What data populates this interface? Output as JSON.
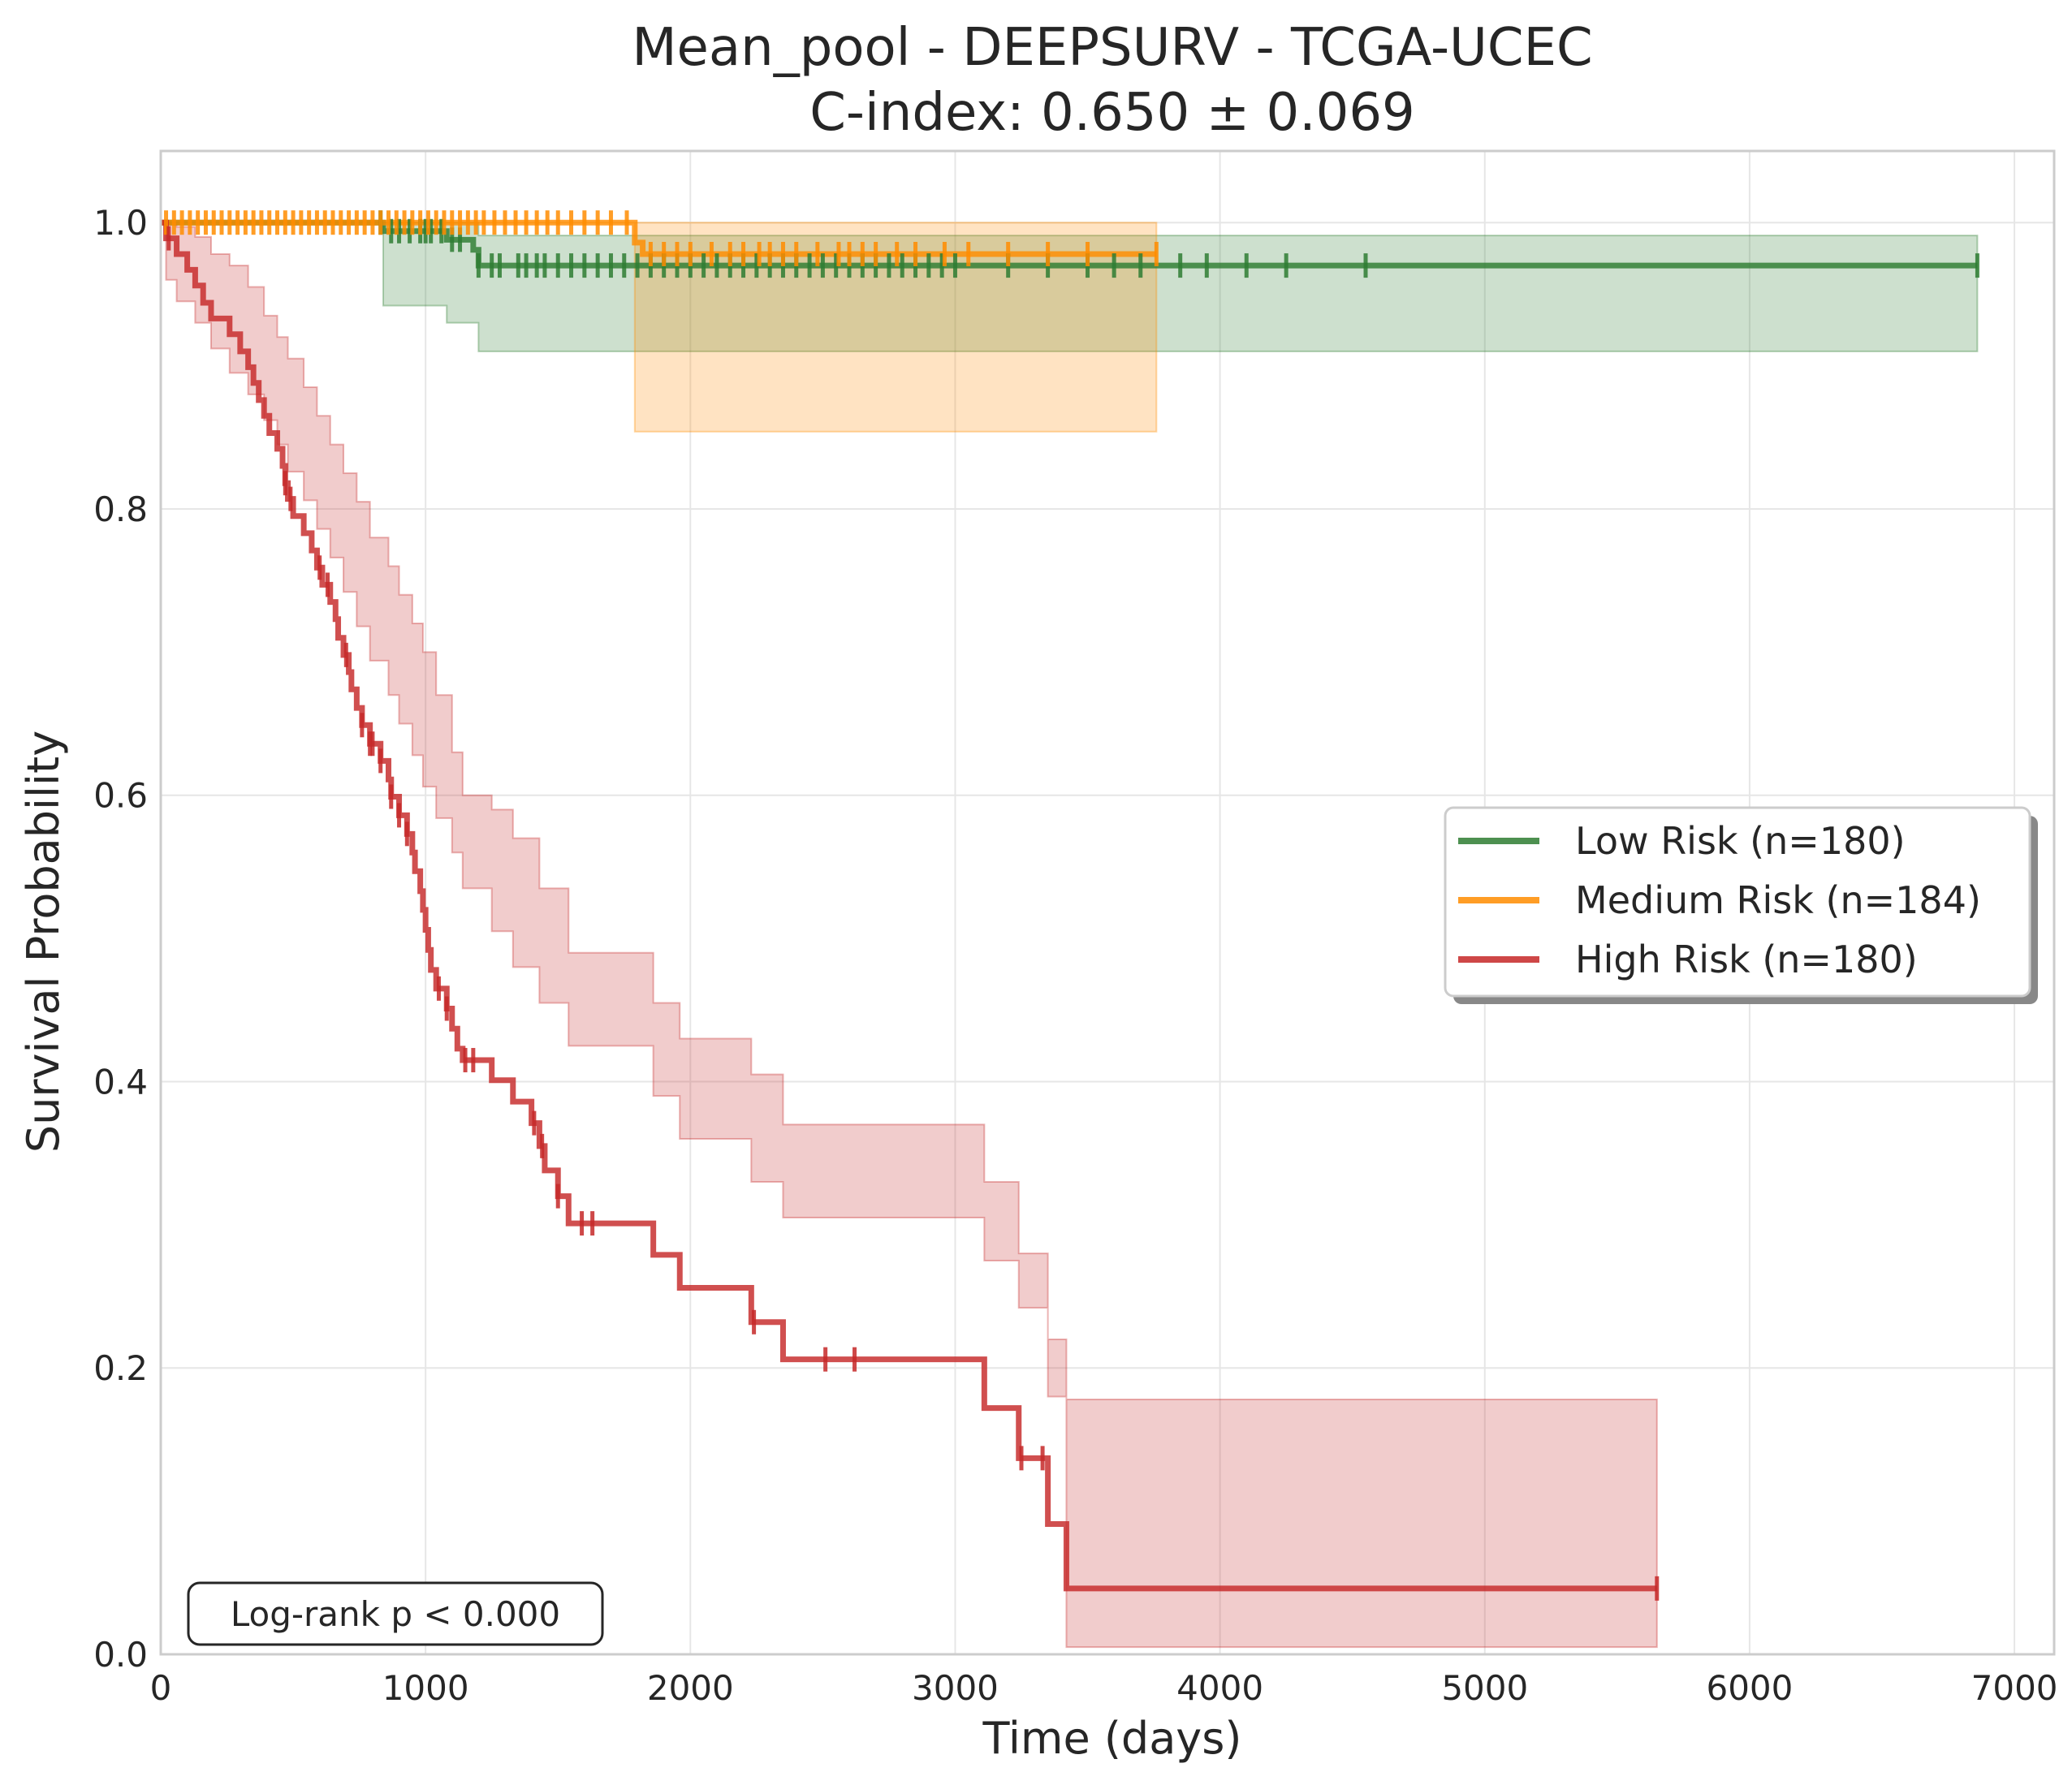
{
  "chart_data": {
    "type": "line",
    "title": "Mean_pool - DEEPSURV - TCGA-UCEC",
    "subtitle": "C-index: 0.650 ± 0.069",
    "xlabel": "Time (days)",
    "ylabel": "Survival Probability",
    "xlim": [
      0,
      7150
    ],
    "ylim": [
      0,
      1.05
    ],
    "x_ticks": [
      0,
      1000,
      2000,
      3000,
      4000,
      5000,
      6000,
      7000
    ],
    "x_tick_labels": [
      "0",
      "1000",
      "2000",
      "3000",
      "4000",
      "5000",
      "6000",
      "7000"
    ],
    "y_ticks": [
      0.0,
      0.2,
      0.4,
      0.6,
      0.8,
      1.0
    ],
    "y_tick_labels": [
      "0.0",
      "0.2",
      "0.4",
      "0.6",
      "0.8",
      "1.0"
    ],
    "grid": true,
    "legend_position": "center-right",
    "annotation": "Log-rank p < 0.000",
    "series": [
      {
        "name": "Low Risk (n=180)",
        "color": "#2e7d32",
        "steps": [
          [
            0,
            1.0
          ],
          [
            840,
            0.994
          ],
          [
            1080,
            0.988
          ],
          [
            1180,
            0.981
          ],
          [
            1200,
            0.97
          ],
          [
            6860,
            0.97
          ]
        ],
        "ci_upper": [
          [
            0,
            1.0
          ],
          [
            840,
            1.0
          ],
          [
            1200,
            0.991
          ],
          [
            6860,
            0.991
          ]
        ],
        "ci_lower": [
          [
            0,
            1.0
          ],
          [
            840,
            0.942
          ],
          [
            1080,
            0.93
          ],
          [
            1200,
            0.91
          ],
          [
            6860,
            0.91
          ]
        ],
        "censor_times": [
          830,
          870,
          900,
          940,
          980,
          1000,
          1020,
          1060,
          1100,
          1130,
          1200,
          1250,
          1280,
          1350,
          1380,
          1420,
          1450,
          1500,
          1550,
          1600,
          1650,
          1700,
          1750,
          1800,
          1850,
          1900,
          1950,
          2000,
          2050,
          2100,
          2150,
          2200,
          2250,
          2300,
          2350,
          2400,
          2450,
          2500,
          2550,
          2600,
          2650,
          2700,
          2750,
          2800,
          2850,
          2900,
          2950,
          3000,
          3200,
          3350,
          3500,
          3600,
          3700,
          3850,
          3950,
          4100,
          4250,
          4550,
          6860
        ]
      },
      {
        "name": "Medium Risk (n=184)",
        "color": "#ff8c00",
        "steps": [
          [
            0,
            1.0
          ],
          [
            1790,
            0.986
          ],
          [
            1820,
            0.978
          ],
          [
            3760,
            0.978
          ]
        ],
        "ci_upper": [
          [
            0,
            1.0
          ],
          [
            1790,
            1.0
          ],
          [
            3760,
            1.0
          ]
        ],
        "ci_lower": [
          [
            0,
            1.0
          ],
          [
            1790,
            0.854
          ],
          [
            3760,
            0.854
          ]
        ],
        "censor_times": [
          20,
          50,
          80,
          110,
          140,
          170,
          200,
          230,
          260,
          290,
          320,
          350,
          380,
          410,
          440,
          470,
          500,
          530,
          560,
          590,
          620,
          650,
          680,
          710,
          740,
          770,
          800,
          830,
          860,
          890,
          920,
          950,
          980,
          1010,
          1040,
          1070,
          1100,
          1130,
          1160,
          1190,
          1220,
          1260,
          1300,
          1340,
          1380,
          1420,
          1460,
          1500,
          1550,
          1600,
          1650,
          1700,
          1760,
          1850,
          1900,
          1950,
          2000,
          2080,
          2150,
          2200,
          2260,
          2300,
          2350,
          2400,
          2480,
          2560,
          2600,
          2650,
          2700,
          2780,
          2850,
          2960,
          3050,
          3200,
          3350,
          3500,
          3760
        ]
      },
      {
        "name": "High Risk (n=180)",
        "color": "#c62828",
        "steps": [
          [
            0,
            1.0
          ],
          [
            20,
            0.989
          ],
          [
            60,
            0.978
          ],
          [
            100,
            0.967
          ],
          [
            130,
            0.956
          ],
          [
            160,
            0.944
          ],
          [
            190,
            0.933
          ],
          [
            260,
            0.922
          ],
          [
            300,
            0.91
          ],
          [
            330,
            0.899
          ],
          [
            350,
            0.888
          ],
          [
            370,
            0.876
          ],
          [
            390,
            0.865
          ],
          [
            410,
            0.853
          ],
          [
            440,
            0.842
          ],
          [
            460,
            0.83
          ],
          [
            470,
            0.818
          ],
          [
            480,
            0.807
          ],
          [
            500,
            0.795
          ],
          [
            540,
            0.783
          ],
          [
            570,
            0.771
          ],
          [
            590,
            0.759
          ],
          [
            610,
            0.747
          ],
          [
            640,
            0.735
          ],
          [
            660,
            0.723
          ],
          [
            670,
            0.71
          ],
          [
            690,
            0.698
          ],
          [
            710,
            0.686
          ],
          [
            720,
            0.674
          ],
          [
            740,
            0.661
          ],
          [
            760,
            0.649
          ],
          [
            790,
            0.636
          ],
          [
            830,
            0.624
          ],
          [
            860,
            0.611
          ],
          [
            870,
            0.599
          ],
          [
            900,
            0.586
          ],
          [
            930,
            0.573
          ],
          [
            950,
            0.56
          ],
          [
            960,
            0.547
          ],
          [
            980,
            0.533
          ],
          [
            990,
            0.52
          ],
          [
            1000,
            0.506
          ],
          [
            1010,
            0.492
          ],
          [
            1020,
            0.478
          ],
          [
            1040,
            0.465
          ],
          [
            1080,
            0.451
          ],
          [
            1100,
            0.437
          ],
          [
            1120,
            0.423
          ],
          [
            1140,
            0.415
          ],
          [
            1250,
            0.401
          ],
          [
            1330,
            0.386
          ],
          [
            1400,
            0.371
          ],
          [
            1430,
            0.355
          ],
          [
            1450,
            0.338
          ],
          [
            1500,
            0.32
          ],
          [
            1540,
            0.301
          ],
          [
            1860,
            0.279
          ],
          [
            1960,
            0.256
          ],
          [
            2230,
            0.232
          ],
          [
            2350,
            0.206
          ],
          [
            3110,
            0.172
          ],
          [
            3240,
            0.137
          ],
          [
            3350,
            0.091
          ],
          [
            3420,
            0.046
          ],
          [
            5650,
            0.046
          ]
        ],
        "ci_upper": [
          [
            0,
            1.0
          ],
          [
            60,
            0.997
          ],
          [
            130,
            0.99
          ],
          [
            190,
            0.978
          ],
          [
            260,
            0.97
          ],
          [
            330,
            0.955
          ],
          [
            390,
            0.935
          ],
          [
            440,
            0.92
          ],
          [
            480,
            0.905
          ],
          [
            540,
            0.885
          ],
          [
            590,
            0.865
          ],
          [
            640,
            0.845
          ],
          [
            690,
            0.825
          ],
          [
            740,
            0.805
          ],
          [
            790,
            0.78
          ],
          [
            860,
            0.76
          ],
          [
            900,
            0.74
          ],
          [
            950,
            0.72
          ],
          [
            990,
            0.7
          ],
          [
            1040,
            0.67
          ],
          [
            1100,
            0.63
          ],
          [
            1140,
            0.6
          ],
          [
            1250,
            0.59
          ],
          [
            1330,
            0.57
          ],
          [
            1430,
            0.535
          ],
          [
            1540,
            0.49
          ],
          [
            1860,
            0.455
          ],
          [
            1960,
            0.43
          ],
          [
            2230,
            0.405
          ],
          [
            2350,
            0.37
          ],
          [
            3110,
            0.33
          ],
          [
            3240,
            0.28
          ],
          [
            3350,
            0.22
          ],
          [
            3420,
            0.178
          ],
          [
            5650,
            0.178
          ]
        ],
        "ci_lower": [
          [
            0,
            1.0
          ],
          [
            20,
            0.96
          ],
          [
            60,
            0.945
          ],
          [
            130,
            0.93
          ],
          [
            190,
            0.912
          ],
          [
            260,
            0.895
          ],
          [
            330,
            0.88
          ],
          [
            390,
            0.862
          ],
          [
            440,
            0.845
          ],
          [
            480,
            0.826
          ],
          [
            540,
            0.806
          ],
          [
            590,
            0.786
          ],
          [
            640,
            0.766
          ],
          [
            690,
            0.742
          ],
          [
            740,
            0.718
          ],
          [
            790,
            0.694
          ],
          [
            860,
            0.67
          ],
          [
            900,
            0.65
          ],
          [
            950,
            0.628
          ],
          [
            990,
            0.606
          ],
          [
            1040,
            0.584
          ],
          [
            1100,
            0.56
          ],
          [
            1140,
            0.535
          ],
          [
            1250,
            0.505
          ],
          [
            1330,
            0.48
          ],
          [
            1430,
            0.455
          ],
          [
            1540,
            0.425
          ],
          [
            1860,
            0.39
          ],
          [
            1960,
            0.36
          ],
          [
            2230,
            0.33
          ],
          [
            2350,
            0.305
          ],
          [
            3110,
            0.275
          ],
          [
            3240,
            0.242
          ],
          [
            3350,
            0.18
          ],
          [
            3420,
            0.005
          ],
          [
            5650,
            0.005
          ]
        ],
        "censor_times": [
          30,
          470,
          490,
          600,
          630,
          700,
          760,
          790,
          800,
          830,
          870,
          900,
          930,
          1050,
          1080,
          1150,
          1180,
          1410,
          1440,
          1500,
          1590,
          1630,
          2240,
          2510,
          2620,
          3250,
          3330,
          5650
        ]
      }
    ]
  }
}
